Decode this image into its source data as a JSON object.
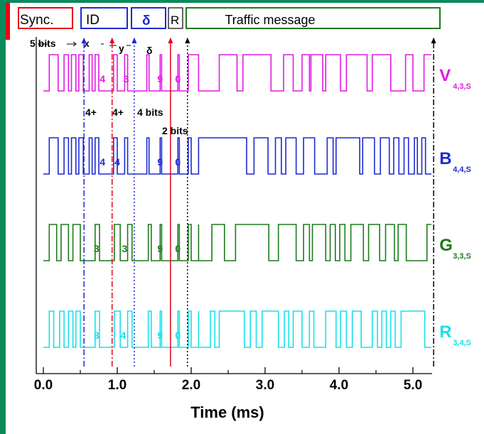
{
  "chart_data": {
    "type": "line",
    "xlabel": "Time (ms)",
    "xlim": [
      0,
      5.3
    ],
    "xticks": [
      "0.0",
      "1.0",
      "2.0",
      "3.0",
      "4.0",
      "5.0"
    ],
    "frame_fields": [
      {
        "label": "Sync.",
        "color": "#e8001c"
      },
      {
        "label": "ID",
        "color": "#1e2ad0"
      },
      {
        "label": "δ",
        "color": "#1e2ad0"
      },
      {
        "label": "R",
        "color": "#000000"
      },
      {
        "label": "Traffic message",
        "color": "#1d7a1d"
      }
    ],
    "section_labels": [
      "5 bits",
      "x",
      "y",
      "δ"
    ],
    "bit_annotations": [
      "4+",
      "4+",
      "4 bits",
      "2 bits"
    ],
    "markers_ms": [
      {
        "x": 0.55,
        "color": "#1e2ad0",
        "style": "dashdot"
      },
      {
        "x": 0.93,
        "color": "#e8001c",
        "style": "dashdot"
      },
      {
        "x": 1.23,
        "color": "#1e2ad0",
        "style": "dotted"
      },
      {
        "x": 1.72,
        "color": "#e8001c",
        "style": "solid"
      },
      {
        "x": 1.95,
        "color": "#000000",
        "style": "dotted"
      },
      {
        "x": 5.28,
        "color": "#000000",
        "style": "dashdot"
      }
    ],
    "series": [
      {
        "name": "V",
        "subscript": "4,3,S",
        "color": "#e21ae2",
        "digits": [
          {
            "text": "4",
            "x": 0.8
          },
          {
            "text": "3",
            "x": 1.12
          },
          {
            "text": "9",
            "x": 1.58
          },
          {
            "text": "0",
            "x": 1.82
          }
        ],
        "transitions": [
          0.08,
          0.2,
          0.28,
          0.34,
          0.38,
          0.44,
          0.48,
          0.54,
          0.62,
          0.66,
          0.7,
          0.75,
          0.95,
          1.0,
          1.1,
          1.14,
          1.4,
          1.43,
          1.58,
          1.6,
          1.82,
          1.84,
          1.96,
          2.1,
          2.38,
          2.62,
          2.7,
          3.08,
          3.25,
          3.38,
          3.5,
          3.6,
          3.62,
          3.78,
          3.82,
          4.02,
          4.1,
          4.38,
          4.45,
          4.7,
          4.9,
          5.0,
          5.15
        ]
      },
      {
        "name": "B",
        "subscript": "4,4,S",
        "color": "#1e2ad0",
        "digits": [
          {
            "text": "4",
            "x": 0.8
          },
          {
            "text": "4",
            "x": 1.0
          },
          {
            "text": "9",
            "x": 1.58
          },
          {
            "text": "0",
            "x": 1.82
          }
        ],
        "transitions": [
          0.08,
          0.2,
          0.28,
          0.34,
          0.38,
          0.44,
          0.48,
          0.54,
          0.62,
          0.66,
          0.7,
          0.75,
          0.95,
          1.0,
          1.1,
          1.14,
          1.4,
          1.43,
          1.58,
          1.6,
          1.82,
          1.84,
          1.96,
          2.0,
          2.1,
          2.75,
          2.85,
          3.04,
          3.14,
          3.22,
          3.28,
          3.42,
          3.52,
          3.67,
          3.84,
          3.92,
          3.96,
          4.28,
          4.32,
          4.48,
          4.56,
          4.68,
          4.74,
          4.81,
          4.88,
          4.94,
          5.02,
          5.06,
          5.12,
          5.17
        ]
      },
      {
        "name": "G",
        "subscript": "3,3,S",
        "color": "#1d7a1d",
        "digits": [
          {
            "text": "3",
            "x": 0.72
          },
          {
            "text": "3",
            "x": 1.1
          },
          {
            "text": "9",
            "x": 1.58
          },
          {
            "text": "0",
            "x": 1.82
          }
        ],
        "transitions": [
          0.08,
          0.18,
          0.24,
          0.34,
          0.4,
          0.5,
          0.7,
          0.76,
          0.96,
          1.04,
          1.14,
          1.2,
          1.42,
          1.46,
          1.58,
          1.6,
          1.82,
          1.84,
          1.96,
          2.0,
          2.1,
          2.1,
          2.28,
          2.45,
          2.6,
          3.05,
          3.18,
          3.42,
          3.52,
          3.6,
          3.64,
          3.82,
          3.88,
          3.95,
          4.01,
          4.08,
          4.16,
          4.33,
          4.4,
          4.55,
          4.63,
          4.75,
          4.8,
          4.91,
          5.19
        ]
      },
      {
        "name": "R",
        "subscript": "3,4,S",
        "color": "#1ae0e8",
        "digits": [
          {
            "text": "3",
            "x": 0.72
          },
          {
            "text": "4",
            "x": 1.08
          },
          {
            "text": "9",
            "x": 1.58
          },
          {
            "text": "0",
            "x": 1.82
          }
        ],
        "transitions": [
          0.08,
          0.14,
          0.22,
          0.28,
          0.34,
          0.4,
          0.44,
          0.5,
          0.7,
          0.76,
          0.96,
          1.04,
          1.14,
          1.2,
          1.42,
          1.46,
          1.58,
          1.6,
          1.82,
          1.84,
          1.96,
          2.0,
          2.1,
          2.1,
          2.26,
          2.32,
          2.38,
          2.72,
          2.8,
          2.88,
          2.96,
          3.18,
          3.26,
          3.32,
          3.38,
          3.5,
          3.6,
          3.66,
          3.82,
          3.96,
          4.02,
          4.1,
          4.18,
          4.3,
          4.45,
          4.52,
          4.58,
          4.64,
          4.7,
          4.76,
          4.84,
          5.16
        ]
      }
    ]
  }
}
